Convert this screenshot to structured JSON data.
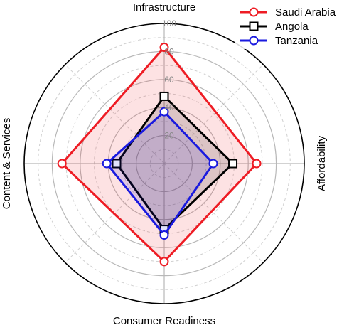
{
  "chart_data": {
    "type": "radar",
    "axes": [
      "Infrastructure",
      "Affordability",
      "Consumer Readiness",
      "Content & Services"
    ],
    "rlim": [
      0,
      100
    ],
    "rticks": [
      20,
      40,
      60,
      80,
      100
    ],
    "rtick_labels": [
      "20",
      "40",
      "60",
      "80",
      "100"
    ],
    "grid": true,
    "legend_position": "top-right",
    "series": [
      {
        "name": "Saudi Arabia",
        "values": [
          83,
          66,
          70,
          73
        ],
        "color": "#ee1c24",
        "marker": "circle",
        "fill": "#ee1c24"
      },
      {
        "name": "Angola",
        "values": [
          48,
          49,
          47,
          34
        ],
        "color": "#000000",
        "marker": "square",
        "fill": "#000000"
      },
      {
        "name": "Tanzania",
        "values": [
          37,
          35,
          51,
          41
        ],
        "color": "#1a1adf",
        "marker": "circle",
        "fill": "#1a1adf"
      }
    ]
  }
}
